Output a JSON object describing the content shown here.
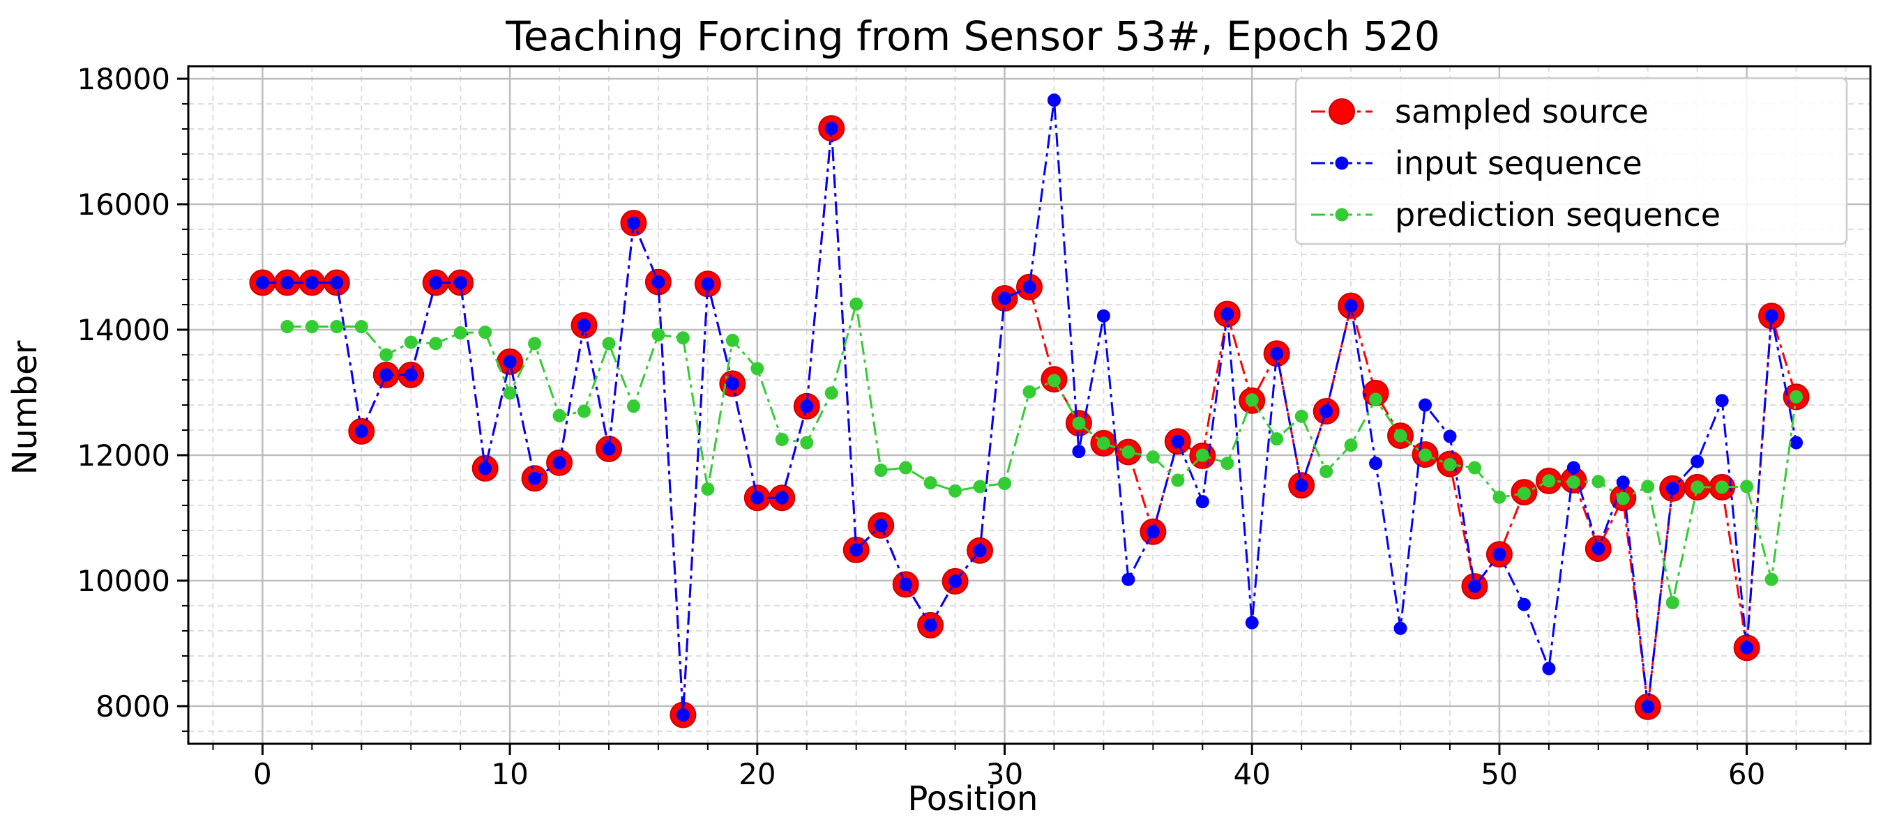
{
  "chart_data": {
    "type": "line",
    "title": "Teaching Forcing from Sensor 53#, Epoch 520",
    "xlabel": "Position",
    "ylabel": "Number",
    "xlim": [
      -3,
      65
    ],
    "ylim": [
      7400,
      18200
    ],
    "xticks": [
      0,
      10,
      20,
      30,
      40,
      50,
      60
    ],
    "yticks": [
      8000,
      10000,
      12000,
      14000,
      16000,
      18000
    ],
    "xtick_labels": [
      "0",
      "10",
      "20",
      "30",
      "40",
      "50",
      "60"
    ],
    "ytick_labels": [
      "8000",
      "10000",
      "12000",
      "14000",
      "16000",
      "18000"
    ],
    "grid": true,
    "minor_grid": true,
    "legend_position": "top-right",
    "series": [
      {
        "name": "sampled source",
        "color": "#ff0000",
        "marker": "large-circle",
        "x": [
          0,
          1,
          2,
          3,
          4,
          5,
          6,
          7,
          8,
          9,
          10,
          11,
          12,
          13,
          14,
          15,
          16,
          17,
          18,
          19,
          20,
          21,
          22,
          23,
          24,
          25,
          26,
          27,
          28,
          29,
          30,
          31,
          32,
          33,
          34,
          35,
          36,
          37,
          38,
          39,
          40,
          41,
          42,
          43,
          44,
          45,
          46,
          47,
          48,
          49,
          50,
          51,
          52,
          53,
          54,
          55,
          56,
          57,
          58,
          59,
          60,
          61,
          62
        ],
        "y": [
          14750,
          14750,
          14750,
          14750,
          12380,
          13280,
          13280,
          14750,
          14750,
          11790,
          13490,
          11630,
          11880,
          14070,
          12100,
          15700,
          14760,
          7860,
          14730,
          13140,
          11320,
          11320,
          12780,
          17210,
          10490,
          10880,
          9940,
          9290,
          9990,
          10480,
          14500,
          14680,
          13210,
          12510,
          12190,
          12050,
          10780,
          12220,
          11990,
          14250,
          12870,
          13620,
          11520,
          12700,
          14380,
          12990,
          12310,
          12010,
          11860,
          9910,
          10420,
          11410,
          11590,
          11600,
          10510,
          11320,
          7990,
          11470,
          11490,
          11490,
          8930,
          14220,
          12930
        ]
      },
      {
        "name": "input sequence",
        "color": "#0000ff",
        "marker": "circle",
        "x": [
          0,
          1,
          2,
          3,
          4,
          5,
          6,
          7,
          8,
          9,
          10,
          11,
          12,
          13,
          14,
          15,
          16,
          17,
          18,
          19,
          20,
          21,
          22,
          23,
          24,
          25,
          26,
          27,
          28,
          29,
          30,
          31,
          32,
          33,
          34,
          35,
          36,
          37,
          38,
          39,
          40,
          41,
          42,
          43,
          44,
          45,
          46,
          47,
          48,
          49,
          50,
          51,
          52,
          53,
          54,
          55,
          56,
          57,
          58,
          59,
          60,
          61,
          62
        ],
        "y": [
          14750,
          14750,
          14750,
          14750,
          12380,
          13280,
          13280,
          14750,
          14750,
          11790,
          13490,
          11630,
          11880,
          14070,
          12100,
          15700,
          14760,
          7860,
          14730,
          13140,
          11320,
          11320,
          12780,
          17210,
          10490,
          10880,
          9940,
          9290,
          9990,
          10480,
          14500,
          14680,
          17660,
          12060,
          14220,
          10020,
          10780,
          12220,
          11260,
          14250,
          9330,
          13620,
          11520,
          12700,
          14380,
          11870,
          9240,
          12800,
          12300,
          9910,
          10420,
          9620,
          8600,
          11800,
          10510,
          11570,
          7990,
          11470,
          11900,
          12870,
          8930,
          14220,
          12200
        ]
      },
      {
        "name": "prediction sequence",
        "color": "#33cc33",
        "marker": "circle",
        "x": [
          1,
          2,
          3,
          4,
          5,
          6,
          7,
          8,
          9,
          10,
          11,
          12,
          13,
          14,
          15,
          16,
          17,
          18,
          19,
          20,
          21,
          22,
          23,
          24,
          25,
          26,
          27,
          28,
          29,
          30,
          31,
          32,
          33,
          34,
          35,
          36,
          37,
          38,
          39,
          40,
          41,
          42,
          43,
          44,
          45,
          46,
          47,
          48,
          49,
          50,
          51,
          52,
          53,
          54,
          55,
          56,
          57,
          58,
          59,
          60,
          61,
          62
        ],
        "y": [
          14050,
          14050,
          14050,
          14050,
          13600,
          13800,
          13780,
          13950,
          13960,
          12990,
          13780,
          12630,
          12700,
          13780,
          12780,
          13920,
          13870,
          11460,
          13830,
          13380,
          12250,
          12200,
          12990,
          14410,
          11760,
          11800,
          11560,
          11430,
          11500,
          11550,
          13010,
          13190,
          12510,
          12190,
          12050,
          11970,
          11600,
          12000,
          11870,
          12880,
          12260,
          12620,
          11740,
          12160,
          12890,
          12310,
          12000,
          11850,
          11800,
          11330,
          11390,
          11590,
          11570,
          11580,
          11310,
          11500,
          9650,
          11490,
          11490,
          11500,
          10020,
          12930
        ]
      }
    ]
  }
}
